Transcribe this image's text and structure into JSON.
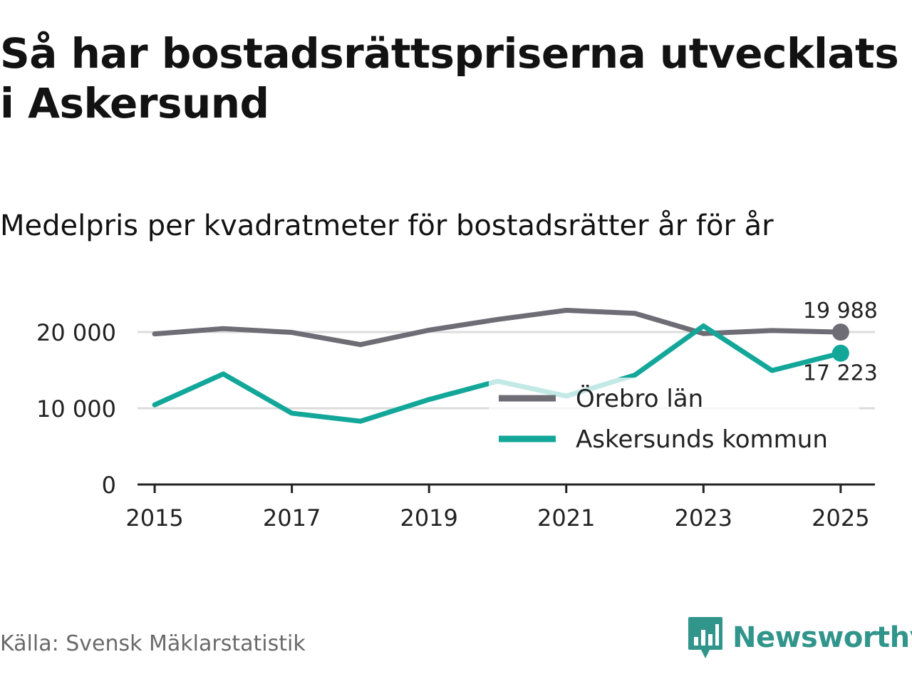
{
  "header": {
    "title": "Så har bostadsrättspriserna utvecklats i Askersund",
    "subtitle": "Medelpris per kvadratmeter för bostadsrätter år för år"
  },
  "footer": {
    "source": "Källa: Svensk Mäklarstatistik",
    "brand": "Newsworthy"
  },
  "colors": {
    "orebro": "#6e6d76",
    "askersund": "#13a79a",
    "grid": "#dcdcdc",
    "axis": "#222222",
    "brand": "#31958b"
  },
  "chart_data": {
    "type": "line",
    "title": "Medelpris per kvadratmeter för bostadsrätter år för år",
    "xlabel": "",
    "ylabel": "",
    "x": [
      2015,
      2016,
      2017,
      2018,
      2019,
      2020,
      2021,
      2022,
      2023,
      2024,
      2025
    ],
    "xlim": [
      2014.75,
      2025.5
    ],
    "ylim": [
      0,
      20000
    ],
    "x_ticks": [
      "2015",
      "2017",
      "2019",
      "2021",
      "2023",
      "2025"
    ],
    "y_ticks": [
      "0",
      "10 000",
      "20 000"
    ],
    "grid": true,
    "legend_position": "center-right",
    "series": [
      {
        "name": "Örebro län",
        "values": [
          19750,
          20450,
          19950,
          18350,
          20250,
          21650,
          22850,
          22450,
          19800,
          20200,
          19988
        ],
        "end_label": "19 988"
      },
      {
        "name": "Askersunds kommun",
        "values": [
          10450,
          14500,
          9350,
          8300,
          11150,
          13550,
          11600,
          14350,
          20800,
          14950,
          17223
        ],
        "end_label": "17 223"
      }
    ]
  }
}
